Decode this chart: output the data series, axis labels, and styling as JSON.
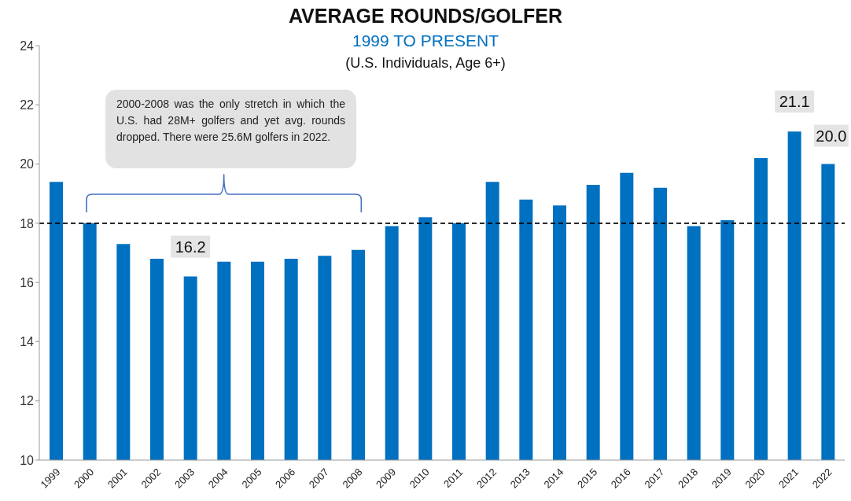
{
  "chart_data": {
    "type": "bar",
    "title": "AVERAGE ROUNDS/GOLFER",
    "subtitle": "1999 TO PRESENT",
    "annotations": [
      "(U.S. Individuals, Age 6+)",
      "2000-2008  was the only stretch in which the U.S. had 28M+ golfers and yet avg. rounds dropped. There were 25.6M golfers in 2022."
    ],
    "categories": [
      "1999",
      "2000",
      "2001",
      "2002",
      "2003",
      "2004",
      "2005",
      "2006",
      "2007",
      "2008",
      "2009",
      "2010",
      "2011",
      "2012",
      "2013",
      "2014",
      "2015",
      "2016",
      "2017",
      "2018",
      "2019",
      "2020",
      "2021",
      "2022"
    ],
    "values": [
      19.4,
      18.0,
      17.3,
      16.8,
      16.2,
      16.7,
      16.7,
      16.8,
      16.9,
      17.1,
      17.9,
      18.2,
      18.0,
      19.4,
      18.8,
      18.6,
      19.3,
      19.7,
      19.2,
      17.9,
      18.1,
      20.2,
      21.1,
      20.0
    ],
    "value_labels": [
      null,
      null,
      null,
      null,
      "16.2",
      null,
      null,
      null,
      null,
      null,
      null,
      null,
      null,
      null,
      null,
      null,
      null,
      null,
      null,
      null,
      null,
      null,
      "21.1",
      "20.0"
    ],
    "color": "#0070c0",
    "ylim": [
      10,
      24
    ],
    "yticks": [
      10,
      12,
      14,
      16,
      18,
      20,
      22,
      24
    ],
    "ref_lines": [
      {
        "axis": "y",
        "value": 18,
        "color": "#000000",
        "line_style": "dashed"
      }
    ]
  }
}
